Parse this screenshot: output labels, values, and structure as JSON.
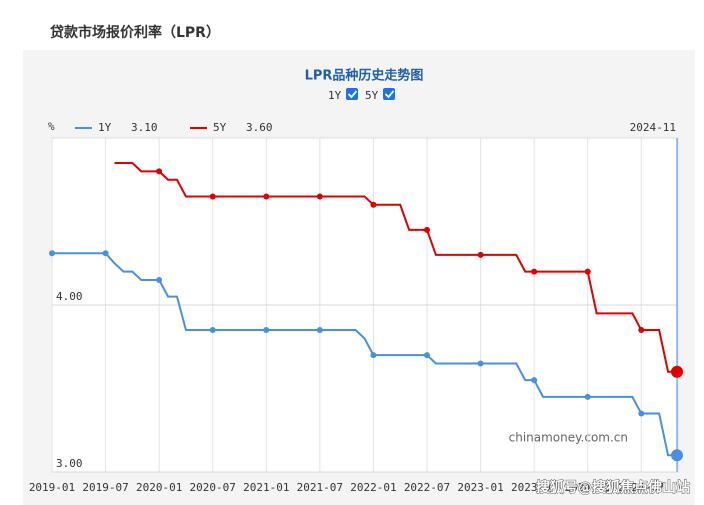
{
  "header": {
    "title": "贷款市场报价利率（LPR）"
  },
  "chart_data": {
    "type": "line",
    "title": "LPR品种历史走势图",
    "y_label": "%",
    "cursor_label": "2024-11",
    "watermark": "chinamoney.com.cn",
    "overlay_watermark": "搜狐号@搜狐焦点佛山站",
    "x": [
      "2019-01",
      "2019-02",
      "2019-03",
      "2019-04",
      "2019-05",
      "2019-06",
      "2019-07",
      "2019-08",
      "2019-09",
      "2019-10",
      "2019-11",
      "2019-12",
      "2020-01",
      "2020-02",
      "2020-03",
      "2020-04",
      "2020-05",
      "2020-06",
      "2020-07",
      "2020-08",
      "2020-09",
      "2020-10",
      "2020-11",
      "2020-12",
      "2021-01",
      "2021-02",
      "2021-03",
      "2021-04",
      "2021-05",
      "2021-06",
      "2021-07",
      "2021-08",
      "2021-09",
      "2021-10",
      "2021-11",
      "2021-12",
      "2022-01",
      "2022-02",
      "2022-03",
      "2022-04",
      "2022-05",
      "2022-06",
      "2022-07",
      "2022-08",
      "2022-09",
      "2022-10",
      "2022-11",
      "2022-12",
      "2023-01",
      "2023-02",
      "2023-03",
      "2023-04",
      "2023-05",
      "2023-06",
      "2023-07",
      "2023-08",
      "2023-09",
      "2023-10",
      "2023-11",
      "2023-12",
      "2024-01",
      "2024-02",
      "2024-03",
      "2024-04",
      "2024-05",
      "2024-06",
      "2024-07",
      "2024-08",
      "2024-09",
      "2024-10",
      "2024-11"
    ],
    "series": [
      {
        "name": "1Y",
        "color": "#4a90e2",
        "legend_value": "3.10",
        "values": [
          4.31,
          4.31,
          4.31,
          4.31,
          4.31,
          4.31,
          4.31,
          4.25,
          4.2,
          4.2,
          4.15,
          4.15,
          4.15,
          4.05,
          4.05,
          3.85,
          3.85,
          3.85,
          3.85,
          3.85,
          3.85,
          3.85,
          3.85,
          3.85,
          3.85,
          3.85,
          3.85,
          3.85,
          3.85,
          3.85,
          3.85,
          3.85,
          3.85,
          3.85,
          3.85,
          3.8,
          3.7,
          3.7,
          3.7,
          3.7,
          3.7,
          3.7,
          3.7,
          3.65,
          3.65,
          3.65,
          3.65,
          3.65,
          3.65,
          3.65,
          3.65,
          3.65,
          3.65,
          3.55,
          3.55,
          3.45,
          3.45,
          3.45,
          3.45,
          3.45,
          3.45,
          3.45,
          3.45,
          3.45,
          3.45,
          3.45,
          3.35,
          3.35,
          3.35,
          3.1,
          3.1
        ]
      },
      {
        "name": "5Y",
        "color": "#e00000",
        "legend_value": "3.60",
        "values": [
          null,
          null,
          null,
          null,
          null,
          null,
          null,
          4.85,
          4.85,
          4.85,
          4.8,
          4.8,
          4.8,
          4.75,
          4.75,
          4.65,
          4.65,
          4.65,
          4.65,
          4.65,
          4.65,
          4.65,
          4.65,
          4.65,
          4.65,
          4.65,
          4.65,
          4.65,
          4.65,
          4.65,
          4.65,
          4.65,
          4.65,
          4.65,
          4.65,
          4.65,
          4.6,
          4.6,
          4.6,
          4.6,
          4.45,
          4.45,
          4.45,
          4.3,
          4.3,
          4.3,
          4.3,
          4.3,
          4.3,
          4.3,
          4.3,
          4.3,
          4.3,
          4.2,
          4.2,
          4.2,
          4.2,
          4.2,
          4.2,
          4.2,
          4.2,
          3.95,
          3.95,
          3.95,
          3.95,
          3.95,
          3.85,
          3.85,
          3.85,
          3.6,
          3.6
        ]
      }
    ],
    "xlim": [
      "2019-01",
      "2024-11"
    ],
    "xticks": [
      "2019-01",
      "2019-07",
      "2020-01",
      "2020-07",
      "2021-01",
      "2021-07",
      "2022-01",
      "2022-07",
      "2023-01",
      "2023-07",
      "2024-01",
      "2024-07"
    ],
    "ylim": [
      3,
      5
    ],
    "yticks": [
      {
        "value": 3,
        "label": "3.00"
      },
      {
        "value": 4,
        "label": "4.00"
      }
    ],
    "grid": true
  }
}
